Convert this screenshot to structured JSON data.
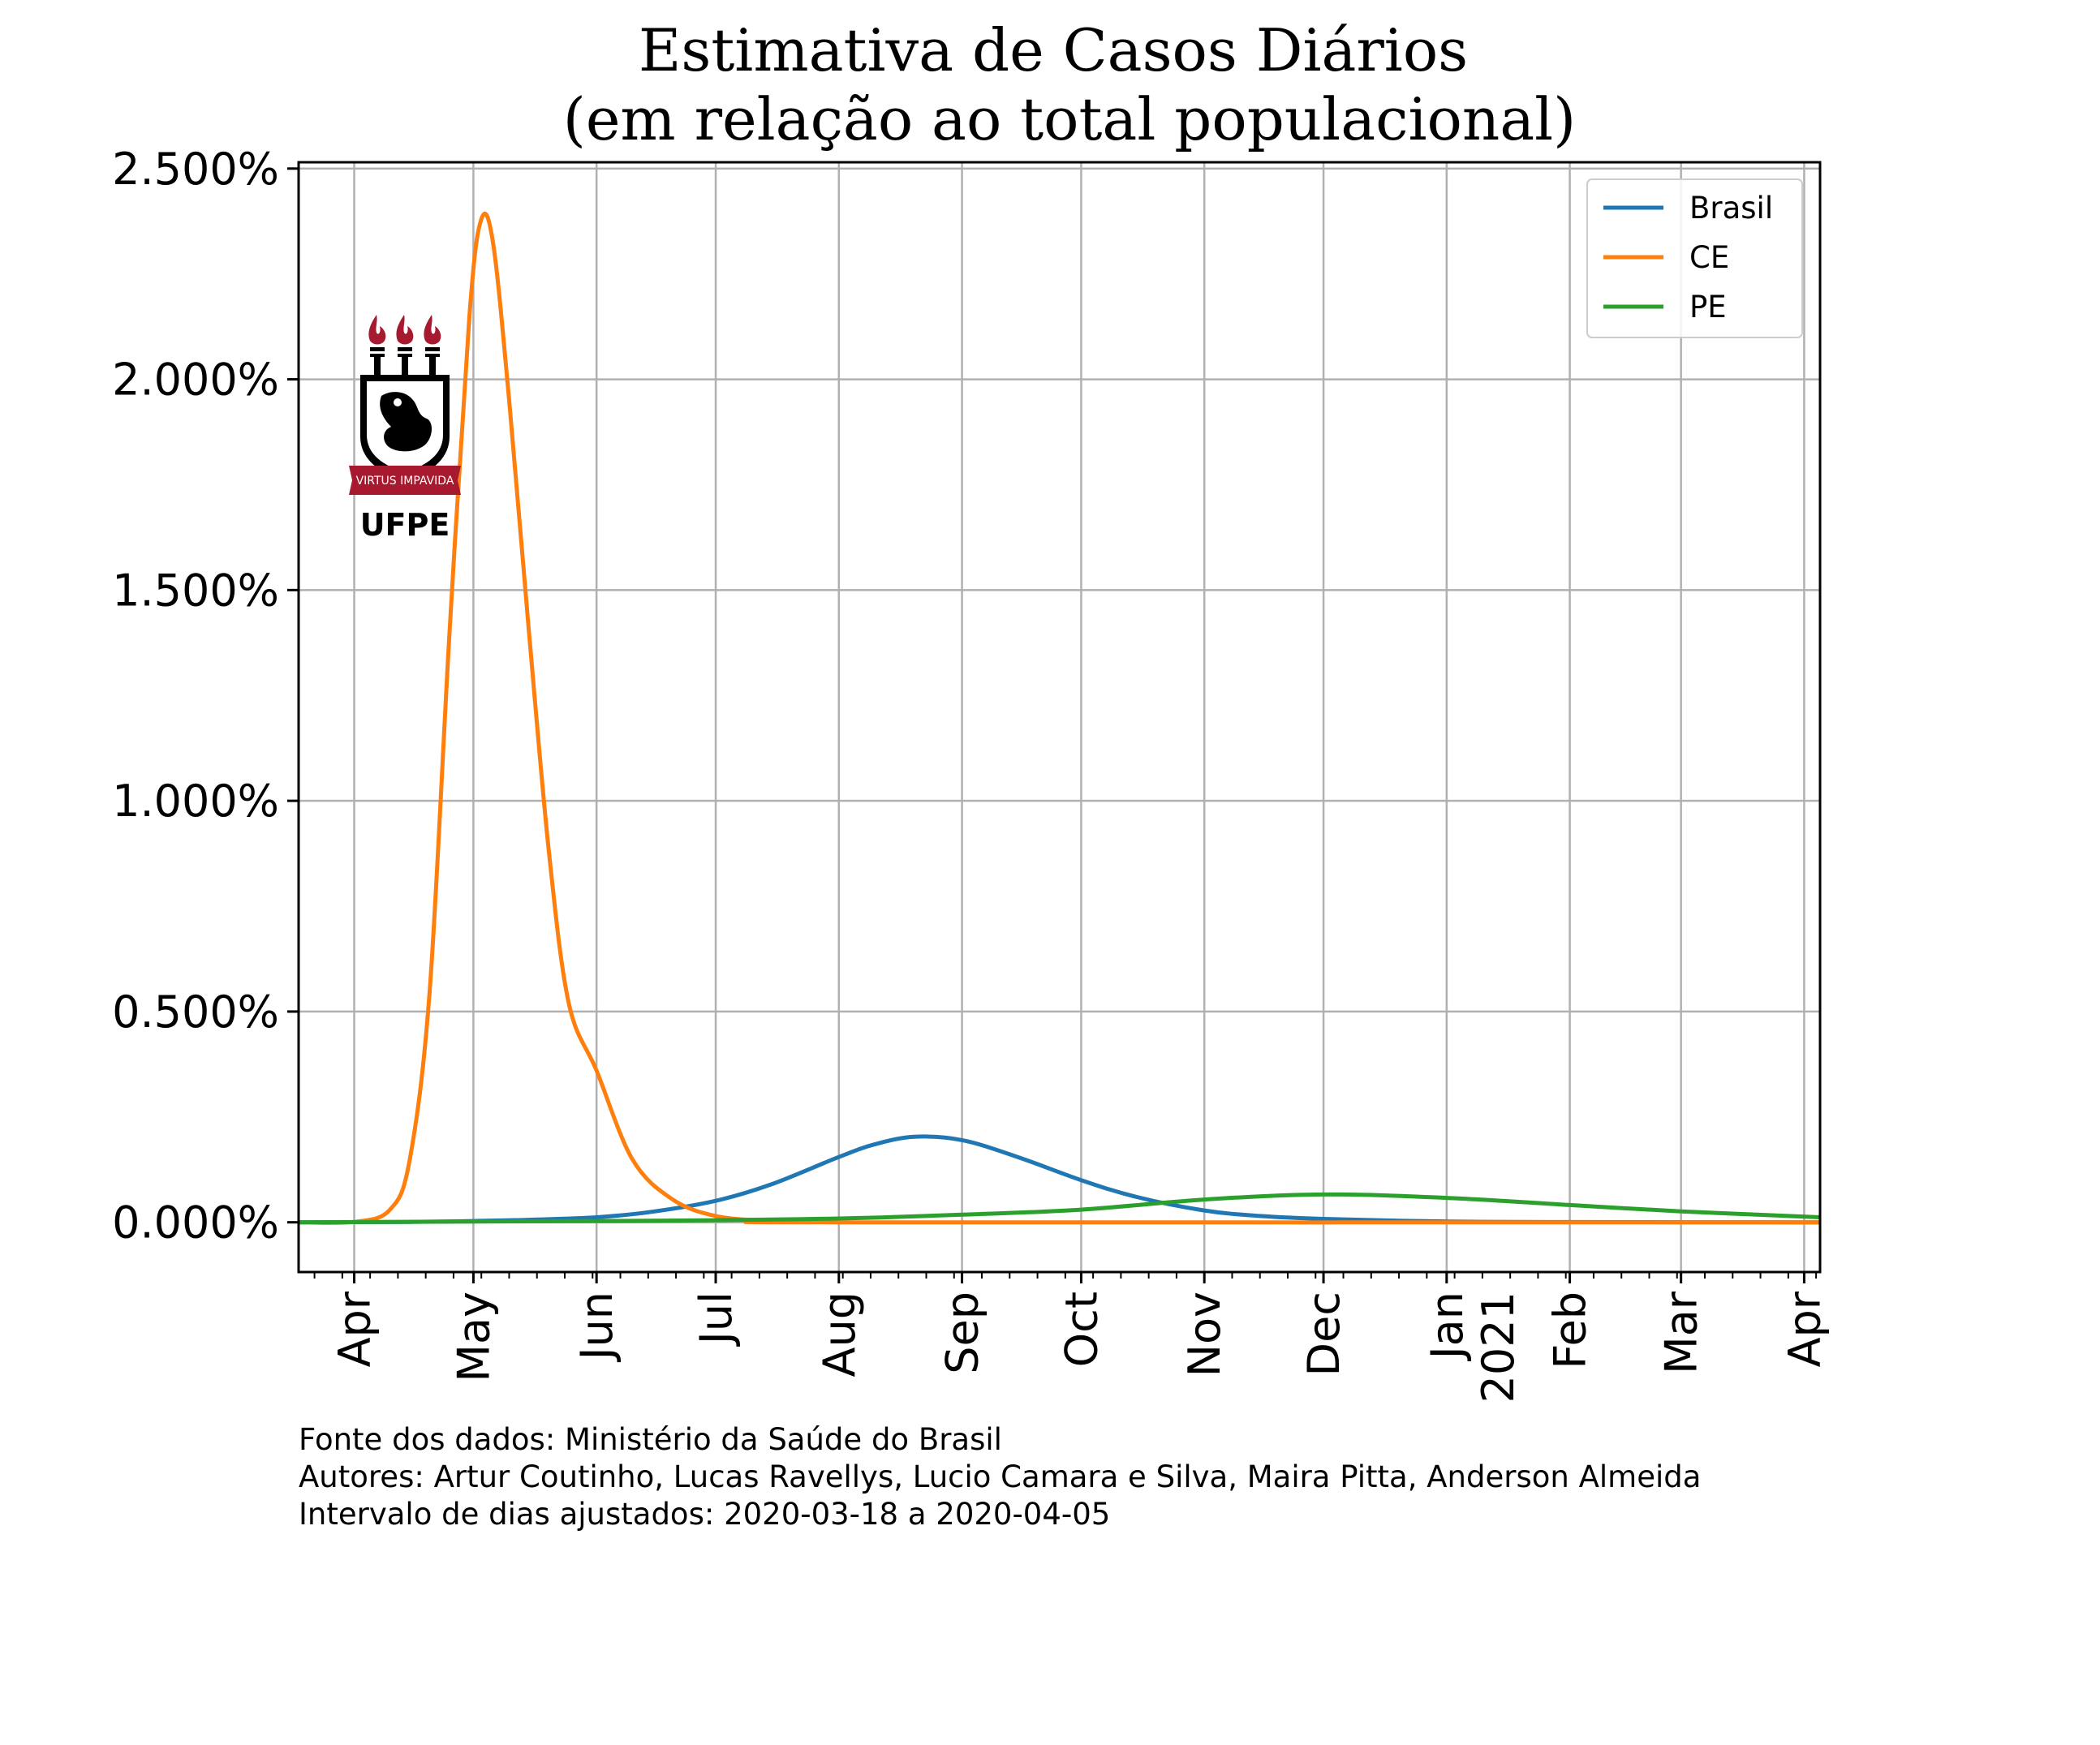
{
  "chart_data": {
    "type": "line",
    "title_lines": [
      "Estimativa de Casos Diários",
      "(em relação ao total populacional)"
    ],
    "xlabel": "",
    "ylabel": "",
    "x_range": [
      "2020-03-18",
      "2021-04-05"
    ],
    "ylim": [
      -0.00118,
      0.02515
    ],
    "y_ticks": [
      {
        "value": 0.0,
        "label": "0.000%"
      },
      {
        "value": 0.005,
        "label": "0.500%"
      },
      {
        "value": 0.01,
        "label": "1.000%"
      },
      {
        "value": 0.015,
        "label": "1.500%"
      },
      {
        "value": 0.02,
        "label": "2.000%"
      },
      {
        "value": 0.025,
        "label": "2.500%"
      }
    ],
    "x_ticks": [
      {
        "date": "2020-04-01",
        "label": "Apr"
      },
      {
        "date": "2020-05-01",
        "label": "May"
      },
      {
        "date": "2020-06-01",
        "label": "Jun"
      },
      {
        "date": "2020-07-01",
        "label": "Jul"
      },
      {
        "date": "2020-08-01",
        "label": "Aug"
      },
      {
        "date": "2020-09-01",
        "label": "Sep"
      },
      {
        "date": "2020-10-01",
        "label": "Oct"
      },
      {
        "date": "2020-11-01",
        "label": "Nov"
      },
      {
        "date": "2020-12-01",
        "label": "Dec"
      },
      {
        "date": "2021-01-01",
        "label": "Jan",
        "label2": "2021"
      },
      {
        "date": "2021-02-01",
        "label": "Feb"
      },
      {
        "date": "2021-03-01",
        "label": "Mar"
      },
      {
        "date": "2021-04-01",
        "label": "Apr"
      }
    ],
    "grid": true,
    "legend_position": "top-right",
    "series": [
      {
        "name": "Brasil",
        "color": "#1f77b4",
        "points": [
          [
            "2020-03-18",
            0.0
          ],
          [
            "2020-04-15",
            1e-05
          ],
          [
            "2020-05-01",
            3e-05
          ],
          [
            "2020-05-15",
            6e-05
          ],
          [
            "2020-06-01",
            0.00012
          ],
          [
            "2020-06-15",
            0.00025
          ],
          [
            "2020-07-01",
            0.00051
          ],
          [
            "2020-07-15",
            0.0009
          ],
          [
            "2020-08-01",
            0.00155
          ],
          [
            "2020-08-10",
            0.00185
          ],
          [
            "2020-08-20",
            0.00203
          ],
          [
            "2020-09-01",
            0.00195
          ],
          [
            "2020-09-15",
            0.00155
          ],
          [
            "2020-10-01",
            0.001
          ],
          [
            "2020-10-15",
            0.0006
          ],
          [
            "2020-11-01",
            0.00028
          ],
          [
            "2020-11-15",
            0.00015
          ],
          [
            "2020-12-01",
            8e-05
          ],
          [
            "2021-01-01",
            2e-05
          ],
          [
            "2021-02-01",
            5e-06
          ],
          [
            "2021-04-05",
            0.0
          ]
        ]
      },
      {
        "name": "CE",
        "color": "#ff7f0e",
        "points": [
          [
            "2020-03-18",
            0.0
          ],
          [
            "2020-04-01",
            1e-05
          ],
          [
            "2020-04-10",
            0.0003
          ],
          [
            "2020-04-15",
            0.0015
          ],
          [
            "2020-04-20",
            0.0055
          ],
          [
            "2020-04-25",
            0.014
          ],
          [
            "2020-04-30",
            0.0215
          ],
          [
            "2020-05-03",
            0.0238
          ],
          [
            "2020-05-06",
            0.0232
          ],
          [
            "2020-05-10",
            0.0195
          ],
          [
            "2020-05-15",
            0.014
          ],
          [
            "2020-05-20",
            0.0088
          ],
          [
            "2020-05-25",
            0.0052
          ],
          [
            "2020-06-01",
            0.0036
          ],
          [
            "2020-06-10",
            0.0015
          ],
          [
            "2020-06-20",
            0.00055
          ],
          [
            "2020-07-01",
            0.00015
          ],
          [
            "2020-07-15",
            3e-05
          ],
          [
            "2020-08-01",
            0.0
          ],
          [
            "2021-04-05",
            0.0
          ]
        ]
      },
      {
        "name": "PE",
        "color": "#2ca02c",
        "points": [
          [
            "2020-03-18",
            0.0
          ],
          [
            "2020-06-01",
            3e-05
          ],
          [
            "2020-07-01",
            5e-05
          ],
          [
            "2020-08-01",
            9e-05
          ],
          [
            "2020-09-01",
            0.00018
          ],
          [
            "2020-10-01",
            0.0003
          ],
          [
            "2020-11-01",
            0.00054
          ],
          [
            "2020-12-01",
            0.00066
          ],
          [
            "2021-01-01",
            0.00058
          ],
          [
            "2021-02-01",
            0.00041
          ],
          [
            "2021-03-01",
            0.00026
          ],
          [
            "2021-04-05",
            0.00012
          ]
        ]
      }
    ]
  },
  "footer": {
    "line1": "Fonte dos dados: Ministério da Saúde do Brasil",
    "line2": "Autores: Artur Coutinho, Lucas Ravellys, Lucio Camara e Silva, Maira Pitta, Anderson Almeida",
    "line3": "Intervalo de dias ajustados: 2020-03-18 a 2020-04-05"
  },
  "logo": {
    "wordmark": "UFPE",
    "motto": "VIRTUS IMPAVIDA",
    "colors": {
      "flame": "#a6192e",
      "band": "#a6192e",
      "shield": "#000000"
    }
  }
}
